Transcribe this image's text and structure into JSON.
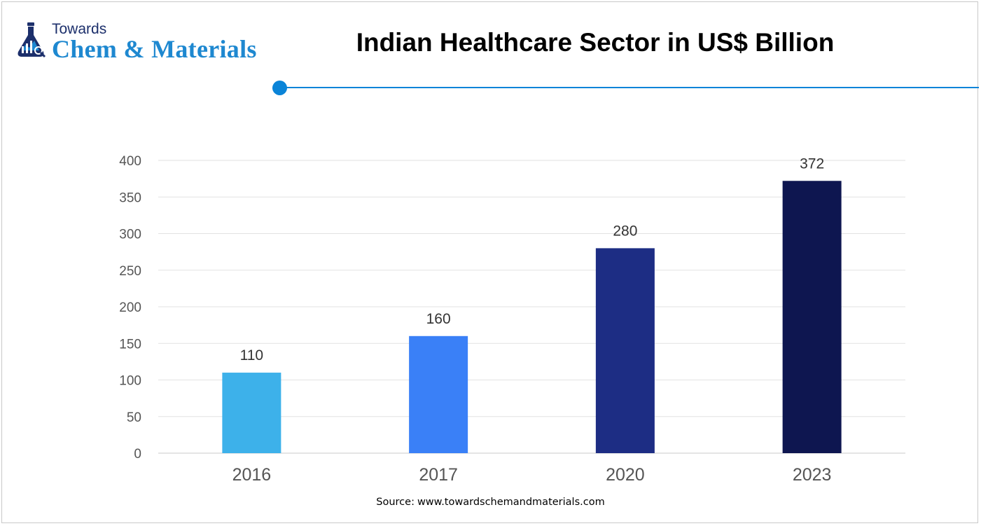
{
  "brand": {
    "line1": "Towards",
    "line2": "Chem & Materials",
    "primary_color": "#1c2f6b",
    "accent_color": "#1e88d0"
  },
  "header": {
    "title": "Indian Healthcare Sector in US$ Billion",
    "divider_color": "#0a84d8"
  },
  "chart_data": {
    "type": "bar",
    "title": "Indian Healthcare Sector in US$ Billion",
    "categories": [
      "2016",
      "2017",
      "2020",
      "2023"
    ],
    "values": [
      110,
      160,
      280,
      372
    ],
    "data_labels": [
      "110",
      "160",
      "280",
      "372"
    ],
    "bar_colors": [
      "#3db1ea",
      "#3a80f7",
      "#1d2d84",
      "#0e1650"
    ],
    "ylim": [
      0,
      400
    ],
    "yticks": [
      0,
      50,
      100,
      150,
      200,
      250,
      300,
      350,
      400
    ],
    "ytick_labels": [
      "0",
      "50",
      "100",
      "150",
      "200",
      "250",
      "300",
      "350",
      "400"
    ],
    "xlabel": "",
    "ylabel": "",
    "grid": true,
    "legend": "none"
  },
  "footer": {
    "source_label": "Source:",
    "source_url": "www.towardschemandmaterials.com"
  }
}
